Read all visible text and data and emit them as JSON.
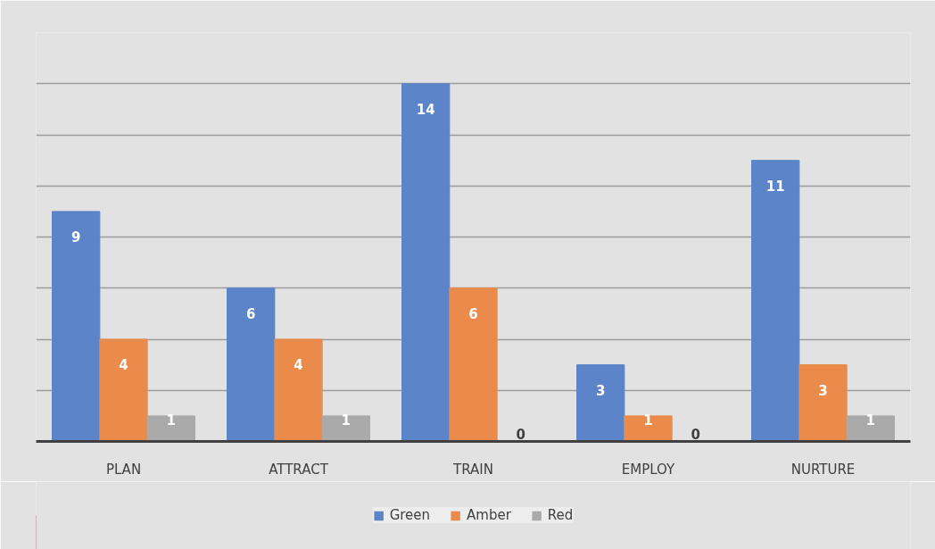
{
  "chart_data": {
    "type": "bar",
    "categories": [
      "PLAN",
      "ATTRACT",
      "TRAIN",
      "EMPLOY",
      "NURTURE"
    ],
    "series": [
      {
        "name": "Green",
        "color": "#5b84c9",
        "values": [
          9,
          6,
          14,
          3,
          11
        ]
      },
      {
        "name": "Amber",
        "color": "#eb8b4b",
        "values": [
          4,
          4,
          6,
          1,
          3
        ]
      },
      {
        "name": "Red",
        "color": "#aaaaaa",
        "values": [
          1,
          1,
          0,
          0,
          1
        ]
      }
    ],
    "ylim": [
      0,
      16
    ],
    "yticks": [
      {
        "value": 0,
        "label": null
      },
      {
        "value": 2,
        "label": null
      },
      {
        "value": 4,
        "label": null
      },
      {
        "value": 6,
        "label": null
      },
      {
        "value": 8,
        "label": null
      },
      {
        "value": 10,
        "label": null
      },
      {
        "value": 12,
        "label": null
      },
      {
        "value": 14,
        "label": null
      },
      {
        "value": 16,
        "label": null
      }
    ],
    "tick_labels": "x",
    "grid": "y",
    "legend": "bottom",
    "data_labels": true
  }
}
